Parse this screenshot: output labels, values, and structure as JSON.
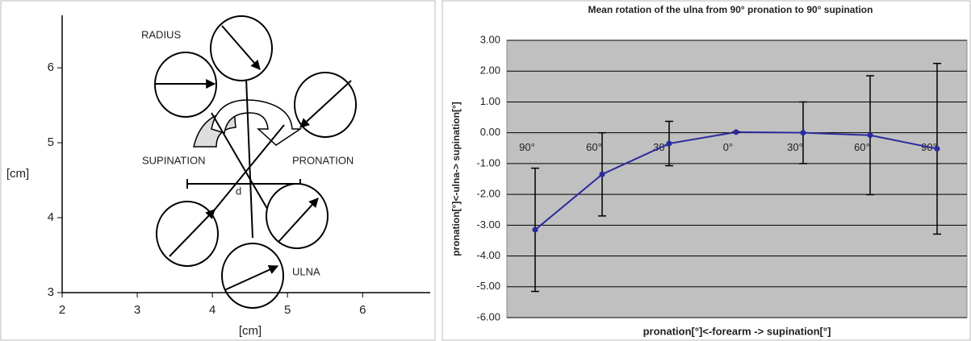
{
  "chart_data": [
    {
      "type": "diagram",
      "xlabel": "[cm]",
      "ylabel": "[cm]",
      "xlim": [
        2,
        6.9
      ],
      "ylim": [
        3,
        6.7
      ],
      "xticks": [
        2,
        3,
        4,
        5,
        6
      ],
      "yticks": [
        3,
        4,
        5,
        6
      ],
      "annotations": [
        "RADIUS",
        "SUPINATION",
        "PRONATION",
        "d",
        "ULNA"
      ]
    },
    {
      "type": "line",
      "title": "Mean rotation of the ulna from 90° pronation to 90° supination",
      "xlabel": "pronation[°]<-forearm -> supination[°]",
      "ylabel": "pronation[°]<-ulna-> supination[°]",
      "categories": [
        "90°",
        "60°",
        "30°",
        "0°",
        "30°",
        "60°",
        "90°"
      ],
      "values": [
        -3.15,
        -1.35,
        -0.35,
        0.02,
        0.0,
        -0.08,
        -0.52
      ],
      "errors": [
        2.0,
        1.35,
        0.72,
        0,
        1.0,
        1.93,
        2.77
      ],
      "color": "#2b2b9e",
      "grid": true,
      "ylim": [
        -6,
        3
      ],
      "yticks": [
        {
          "value": -6,
          "label": "-6.00"
        },
        {
          "value": -5,
          "label": "-5.00"
        },
        {
          "value": -4,
          "label": "-4.00"
        },
        {
          "value": -3,
          "label": "-3.00"
        },
        {
          "value": -2,
          "label": "-2.00"
        },
        {
          "value": -1,
          "label": "-1.00"
        },
        {
          "value": 0,
          "label": "0.00"
        },
        {
          "value": 1,
          "label": "1.00"
        },
        {
          "value": 2,
          "label": "2.00"
        },
        {
          "value": 3,
          "label": "3.00"
        }
      ]
    }
  ]
}
